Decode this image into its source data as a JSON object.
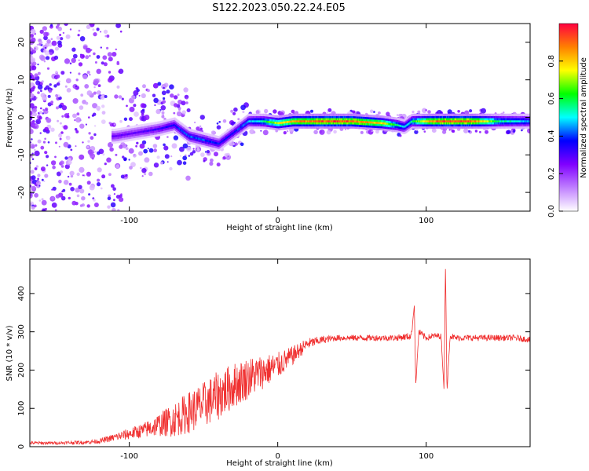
{
  "figure_title": "S122.2023.050.22.24.E05",
  "colors": {
    "snr_line": "#f03030",
    "colormap": [
      "#ffffff",
      "#c080ff",
      "#8000ff",
      "#0000ff",
      "#00ffff",
      "#00ff00",
      "#ffff00",
      "#ff8000",
      "#ff0040"
    ]
  },
  "chart_data": [
    {
      "id": "spectrogram",
      "type": "heatmap",
      "title": "",
      "xlabel": "Height of straight line (km)",
      "ylabel": "Frequency (Hz)",
      "xlim": [
        -167,
        170
      ],
      "ylim": [
        -25,
        25
      ],
      "xticks": [
        -100,
        0,
        100
      ],
      "xtick_labels": [
        "-100",
        "0",
        "100"
      ],
      "yticks": [
        -20,
        -10,
        0,
        10,
        20
      ],
      "ytick_labels": [
        "-20",
        "-10",
        "0",
        "10",
        "20"
      ],
      "colorbar": {
        "label": "Normalized spectral amplitude",
        "range": [
          0,
          1
        ],
        "ticks": [
          0,
          0.2,
          0.4,
          0.6,
          0.8
        ],
        "tick_labels": [
          "0.0",
          "0.2",
          "0.4",
          "0.6",
          "0.8"
        ]
      },
      "ridge": {
        "x": [
          -110,
          -95,
          -80,
          -70,
          -60,
          -50,
          -40,
          -30,
          -20,
          -10,
          0,
          10,
          30,
          50,
          70,
          80,
          85,
          90,
          100,
          110,
          130,
          150,
          170
        ],
        "y": [
          -5,
          -4,
          -3,
          -2,
          -5,
          -6,
          -7,
          -4,
          -1,
          -1,
          -1.5,
          -1,
          -1,
          -1,
          -1.5,
          -2,
          -2.5,
          -1,
          -1,
          -1,
          -1,
          -1,
          -1
        ],
        "amplitude": [
          0.3,
          0.3,
          0.35,
          0.4,
          0.45,
          0.45,
          0.4,
          0.4,
          0.5,
          0.6,
          0.8,
          0.9,
          1.0,
          1.0,
          0.85,
          0.6,
          0.5,
          0.6,
          0.9,
          1.0,
          1.0,
          0.6,
          0.5
        ]
      }
    },
    {
      "id": "snr",
      "type": "line",
      "title": "",
      "xlabel": "Height of straight line (km)",
      "ylabel": "SNR (10 * v/v)",
      "xlim": [
        -167,
        170
      ],
      "ylim": [
        0,
        490
      ],
      "xticks": [
        -100,
        0,
        100
      ],
      "xtick_labels": [
        "-100",
        "0",
        "100"
      ],
      "yticks": [
        0,
        100,
        200,
        300,
        400
      ],
      "ytick_labels": [
        "0",
        "100",
        "200",
        "300",
        "400"
      ],
      "series": [
        {
          "x": [
            -167,
            -150,
            -130,
            -120,
            -110,
            -100,
            -90,
            -80,
            -70,
            -60,
            -50,
            -40,
            -30,
            -20,
            -10,
            0,
            10,
            20,
            30,
            40,
            60,
            80,
            90,
            92,
            93,
            95,
            100,
            105,
            110,
            112,
            113,
            114,
            116,
            120,
            140,
            160,
            170
          ],
          "y": [
            10,
            10,
            12,
            15,
            25,
            35,
            45,
            60,
            75,
            95,
            115,
            140,
            165,
            185,
            200,
            215,
            240,
            270,
            280,
            285,
            285,
            285,
            290,
            370,
            160,
            300,
            285,
            290,
            290,
            150,
            480,
            140,
            290,
            285,
            285,
            285,
            280
          ],
          "noise": [
            4,
            4,
            5,
            6,
            10,
            15,
            20,
            30,
            45,
            55,
            60,
            65,
            60,
            55,
            45,
            35,
            25,
            15,
            10,
            8,
            8,
            8,
            10,
            0,
            0,
            10,
            8,
            8,
            8,
            0,
            0,
            0,
            8,
            8,
            8,
            8,
            8
          ]
        }
      ]
    }
  ]
}
